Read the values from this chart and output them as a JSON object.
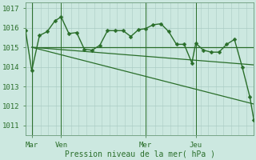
{
  "background_color": "#cce8e0",
  "grid_color_major": "#aaccc4",
  "grid_color_minor": "#bbddd6",
  "line_color": "#2a6e2a",
  "xlabel": "Pression niveau de la mer( hPa )",
  "ylim": [
    1010.5,
    1017.3
  ],
  "yticks": [
    1011,
    1012,
    1013,
    1014,
    1015,
    1016,
    1017
  ],
  "day_labels": [
    "Mar",
    "Ven",
    "Mer",
    "Jeu"
  ],
  "day_positions": [
    8,
    46,
    155,
    220
  ],
  "xlim": [
    0,
    295
  ],
  "detail_series": {
    "x": [
      0,
      8,
      18,
      28,
      38,
      46,
      56,
      66,
      76,
      86,
      96,
      106,
      116,
      126,
      136,
      146,
      155,
      165,
      175,
      185,
      195,
      205,
      215,
      220,
      230,
      240,
      250,
      260,
      270,
      280,
      290,
      295
    ],
    "y": [
      1015.85,
      1013.8,
      1015.6,
      1015.8,
      1016.35,
      1016.55,
      1015.7,
      1015.75,
      1014.9,
      1014.85,
      1015.1,
      1015.85,
      1015.85,
      1015.85,
      1015.55,
      1015.9,
      1015.95,
      1016.15,
      1016.2,
      1015.8,
      1015.15,
      1015.15,
      1014.2,
      1015.2,
      1014.85,
      1014.75,
      1014.75,
      1015.15,
      1015.4,
      1014.0,
      1012.45,
      1011.3
    ]
  },
  "straight_lines": [
    {
      "x": [
        8,
        295
      ],
      "y": [
        1015.0,
        1014.1
      ]
    },
    {
      "x": [
        8,
        295
      ],
      "y": [
        1015.0,
        1015.0
      ]
    },
    {
      "x": [
        8,
        295
      ],
      "y": [
        1015.0,
        1012.1
      ]
    }
  ],
  "marker_size": 2.5,
  "linewidth": 1.0,
  "straight_linewidth": 0.9
}
